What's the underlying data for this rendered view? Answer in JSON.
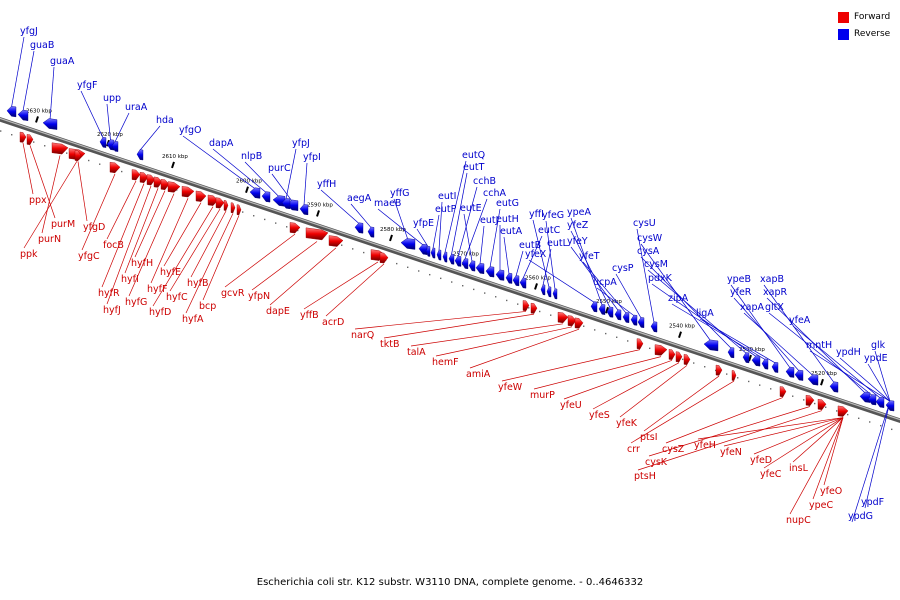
{
  "caption": "Escherichia coli str. K12 substr. W3110 DNA, complete genome. - 0..4646332",
  "legend": [
    {
      "label": "Forward",
      "color": "#ee0000"
    },
    {
      "label": "Reverse",
      "color": "#0000ee"
    }
  ],
  "axis": {
    "unit_suffix": " kbp",
    "ticks": [
      2630,
      2620,
      2610,
      2600,
      2590,
      2580,
      2570,
      2560,
      2550,
      2540,
      2530,
      2520
    ]
  },
  "reverse_genes": [
    "yfgJ",
    "guaB",
    "guaA",
    "yfgF",
    "upp",
    "uraA",
    "hda",
    "yfgO",
    "dapA",
    "nlpB",
    "purC",
    "yfpJ",
    "yfpI",
    "yffH",
    "aegA",
    "yffG",
    "maeB",
    "yfpE",
    "eutP",
    "eutI",
    "eutQ",
    "eutT",
    "cchB",
    "cchA",
    "eutE",
    "eutJ",
    "eutG",
    "eutH",
    "eutA",
    "eutB",
    "eutC",
    "eutL",
    "yffI",
    "yfeG",
    "yfeX",
    "ypeA",
    "yfeZ",
    "yfeY",
    "yfeT",
    "ucpA",
    "cysP",
    "cysU",
    "cysW",
    "cysA",
    "cysM",
    "pdxK",
    "zipA",
    "ligA",
    "ypeB",
    "yfeR",
    "xapA",
    "xapB",
    "xapR",
    "gltX",
    "yfeA",
    "mntH",
    "ypdH",
    "glk",
    "ypdE",
    "ypdF",
    "ypdG"
  ],
  "forward_genes": [
    "ppx",
    "purM",
    "purN",
    "ppk",
    "yfgD",
    "yfgC",
    "focB",
    "hyfR",
    "hyfJ",
    "hyfI",
    "hyfH",
    "hyfG",
    "hyfF",
    "hyfE",
    "hyfD",
    "hyfC",
    "hyfB",
    "hyfA",
    "bcp",
    "gcvR",
    "yfpN",
    "dapE",
    "yffB",
    "acrD",
    "narQ",
    "tktB",
    "talA",
    "hemF",
    "amiA",
    "yfeW",
    "murP",
    "yfeU",
    "yfeS",
    "yfeK",
    "ptsI",
    "crr",
    "cysZ",
    "cysK",
    "ptsH",
    "yfeH",
    "yfeN",
    "yfeD",
    "yfeC",
    "insL",
    "nupC",
    "yfeO",
    "ypeC"
  ]
}
